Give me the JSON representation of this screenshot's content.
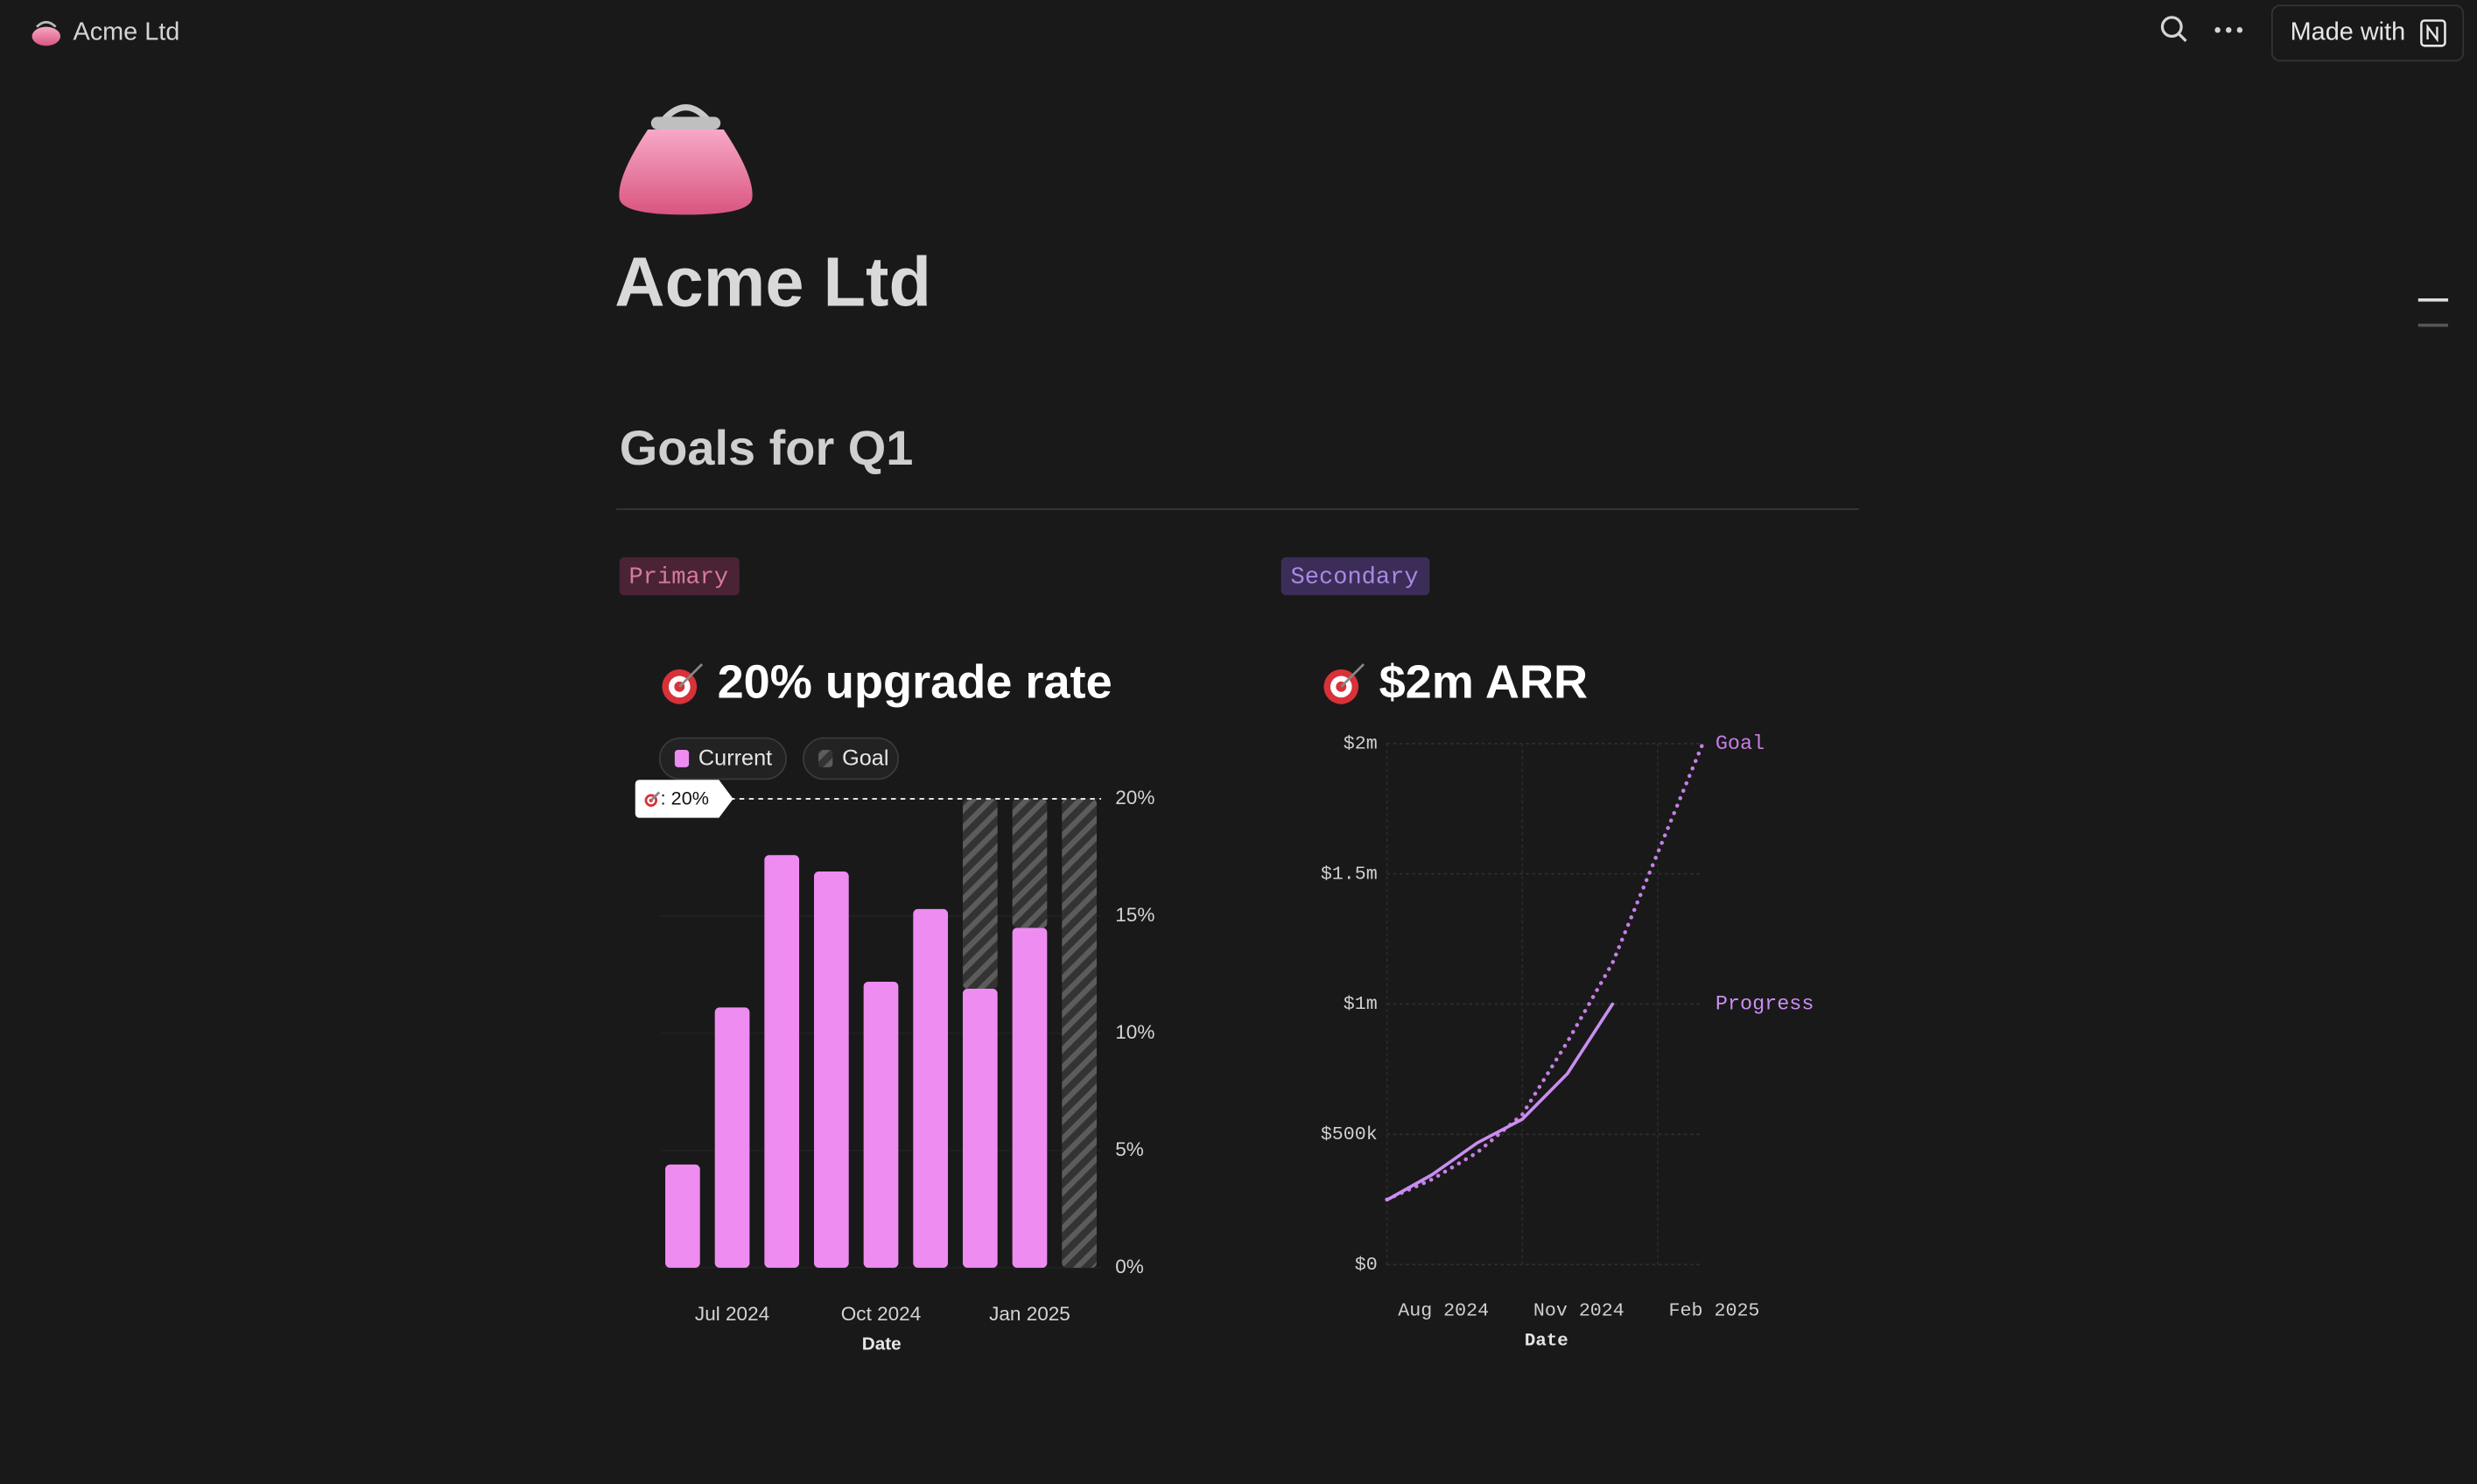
{
  "topbar": {
    "workspace": "Acme Ltd",
    "made_with": "Made with"
  },
  "title": "Acme Ltd",
  "heading": "Goals for Q1",
  "chart_data": [
    {
      "type": "bar",
      "tag": "Primary",
      "title": "20% upgrade rate",
      "categories": [
        null,
        "Jul 2024",
        null,
        null,
        "Oct 2024",
        null,
        null,
        "Jan 2025",
        null
      ],
      "series": [
        {
          "name": "Current",
          "color": "#ee8cf2",
          "values": [
            4.4,
            11.1,
            17.6,
            16.9,
            12.2,
            15.3,
            11.9,
            14.5,
            null
          ]
        },
        {
          "name": "Goal",
          "color": "#4a4a4a",
          "values": [
            null,
            null,
            null,
            null,
            null,
            null,
            8.1,
            5.5,
            20
          ]
        }
      ],
      "stacked": true,
      "goal_line": {
        "value": 20,
        "label": ": 20%"
      },
      "ylim": [
        0,
        20
      ],
      "yticks": [
        {
          "value": 0,
          "label": "0%"
        },
        {
          "value": 5,
          "label": "5%"
        },
        {
          "value": 10,
          "label": "10%"
        },
        {
          "value": 15,
          "label": "15%"
        },
        {
          "value": 20,
          "label": "20%"
        }
      ],
      "xlabel": "Date"
    },
    {
      "type": "line",
      "tag": "Secondary",
      "title": "$2m ARR",
      "x": [
        "2024-08",
        "2024-09",
        "2024-10",
        "2024-11",
        "2024-12",
        "2025-01",
        "2025-02",
        "2025-03"
      ],
      "series": [
        {
          "name": "Goal",
          "color": "#c77ee6",
          "dotted": true,
          "values": [
            250000,
            327000,
            430000,
            576000,
            855000,
            1158000,
            1580000,
            2000000
          ]
        },
        {
          "name": "Progress",
          "color": "#c98ef2",
          "dotted": false,
          "values": [
            248000,
            345000,
            467000,
            558000,
            733000,
            1000000,
            null,
            null
          ]
        }
      ],
      "xlim": [
        "2024-08",
        "2025-03"
      ],
      "xticks": [
        {
          "value": "2024-08",
          "label": "Aug 2024"
        },
        {
          "value": "2024-11",
          "label": "Nov 2024"
        },
        {
          "value": "2025-02",
          "label": "Feb 2025"
        }
      ],
      "ylim": [
        0,
        2000000
      ],
      "yticks": [
        {
          "value": 0,
          "label": "$0"
        },
        {
          "value": 500000,
          "label": "$500k"
        },
        {
          "value": 1000000,
          "label": "$1m"
        },
        {
          "value": 1500000,
          "label": "$1.5m"
        },
        {
          "value": 2000000,
          "label": "$2m"
        }
      ],
      "xlabel": "Date"
    }
  ]
}
